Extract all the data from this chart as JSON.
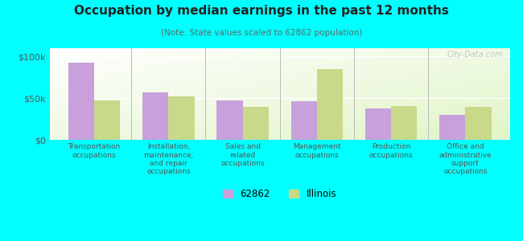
{
  "title": "Occupation by median earnings in the past 12 months",
  "subtitle": "(Note: State values scaled to 62862 population)",
  "categories": [
    "Transportation\noccupations",
    "Installation,\nmaintenance,\nand repair\noccupations",
    "Sales and\nrelated\noccupations",
    "Management\noccupations",
    "Production\noccupations",
    "Office and\nadministrative\nsupport\noccupations"
  ],
  "values_62862": [
    93000,
    57000,
    47000,
    46000,
    38000,
    30000
  ],
  "values_illinois": [
    47000,
    52000,
    40000,
    85000,
    41000,
    40000
  ],
  "color_62862": "#c9a0dc",
  "color_illinois": "#c8d98a",
  "ylim": [
    0,
    110000
  ],
  "yticks": [
    0,
    50000,
    100000
  ],
  "ytick_labels": [
    "$0",
    "$50k",
    "$100k"
  ],
  "background_color": "#00ffff",
  "watermark": "City-Data.com",
  "legend_label_1": "62862",
  "legend_label_2": "Illinois",
  "bar_width": 0.35
}
